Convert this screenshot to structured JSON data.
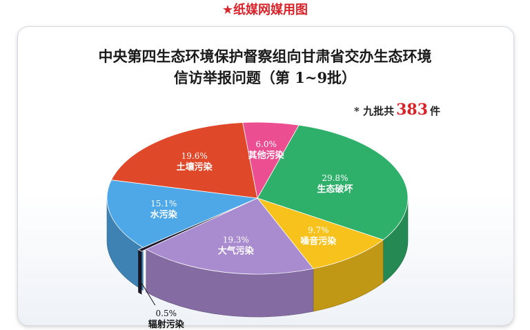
{
  "header": {
    "text": "★纸媒网媒用图"
  },
  "chart_data": {
    "type": "pie",
    "title_line1": "中央第四生态环境保护督察组向甘肃省交办生态环境",
    "title_line2": "信访举报问题（第 1~9批）",
    "note": {
      "prefix": "* 九批共",
      "count": "383",
      "suffix": "件"
    },
    "slices": [
      {
        "name": "生态破坏",
        "pct": "29.8%",
        "value": 29.8,
        "color": "#2fb06a"
      },
      {
        "name": "噪音污染",
        "pct": "9.7%",
        "value": 9.7,
        "color": "#f7c21c"
      },
      {
        "name": "大气污染",
        "pct": "19.3%",
        "value": 19.3,
        "color": "#a98bd0"
      },
      {
        "name": "辐射污染",
        "pct": "0.5%",
        "value": 0.5,
        "color": "#1e1a2e"
      },
      {
        "name": "水污染",
        "pct": "15.1%",
        "value": 15.1,
        "color": "#4ea7e6"
      },
      {
        "name": "土壤污染",
        "pct": "19.6%",
        "value": 19.6,
        "color": "#e0482a"
      },
      {
        "name": "其他污染",
        "pct": "6.0%",
        "value": 6.0,
        "color": "#ec4f91"
      }
    ]
  }
}
